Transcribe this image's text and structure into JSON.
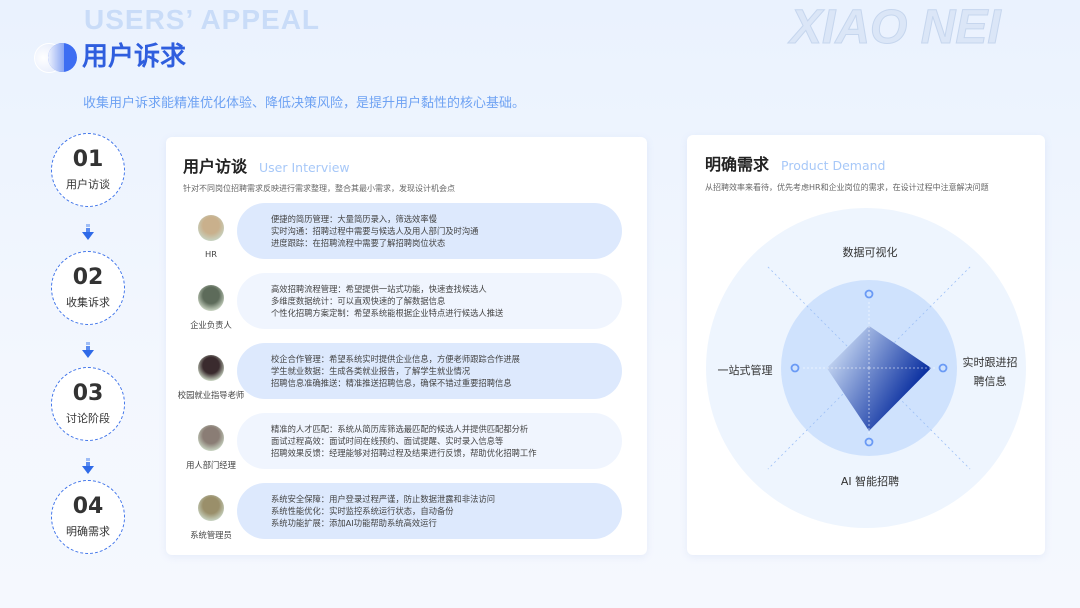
{
  "header": {
    "watermark": "USERS’  APPEAL",
    "watermark_right": "XIAO NEI",
    "title": "用户诉求",
    "subtitle": "收集用户诉求能精准优化体验、降低决策风险，是提升用户黏性的核心基础。"
  },
  "steps": [
    {
      "num": "01",
      "label": "用户访谈"
    },
    {
      "num": "02",
      "label": "收集诉求"
    },
    {
      "num": "03",
      "label": "讨论阶段"
    },
    {
      "num": "04",
      "label": "明确需求"
    }
  ],
  "interview": {
    "title": "用户访谈",
    "title_en": "User Interview",
    "desc": "针对不同岗位招聘需求反映进行需求整理，整合其最小需求，发现设计机会点",
    "rows": [
      {
        "role": "HR",
        "lines": [
          "便捷的简历管理：大量简历录入，筛选效率慢",
          "实时沟通：招聘过程中需要与候选人及用人部门及时沟通",
          "进度跟踪：在招聘流程中需要了解招聘岗位状态"
        ]
      },
      {
        "role": "企业负责人",
        "lines": [
          "高效招聘流程管理：希望提供一站式功能，快速查找候选人",
          "多维度数据统计：可以直观快速的了解数据信息",
          "个性化招聘方案定制：希望系统能根据企业特点进行候选人推送"
        ]
      },
      {
        "role": "校园就业指导老师",
        "lines": [
          "校企合作管理：希望系统实时提供企业信息，方便老师跟踪合作进展",
          "学生就业数据：生成各类就业报告，了解学生就业情况",
          "招聘信息准确推送：精准推送招聘信息，确保不错过重要招聘信息"
        ]
      },
      {
        "role": "用人部门经理",
        "lines": [
          "精准的人才匹配：系统从简历库筛选最匹配的候选人并提供匹配都分析",
          "面试过程高效：面试时间在线预约、面试提醒、实时录入信息等",
          "招聘效果反馈：经理能够对招聘过程及结果进行反馈，帮助优化招聘工作"
        ]
      },
      {
        "role": "系统管理员",
        "lines": [
          "系统安全保障：用户登录过程严谨，防止数据泄露和非法访问",
          "系统性能优化：实时监控系统运行状态，自动备份",
          "系统功能扩展：添加AI功能帮助系统高效运行"
        ]
      }
    ]
  },
  "demand": {
    "title": "明确需求",
    "title_en": "Product Demand",
    "desc": "从招聘效率来看待，优先考虑HR和企业岗位的需求，在设计过程中注意解决问题",
    "radar": {
      "axes": [
        {
          "label": "数据可视化",
          "value": 0.57
        },
        {
          "label_1": "实时跟进招",
          "label_2": "聘信息",
          "value": 0.84
        },
        {
          "label": "AI 智能招聘",
          "value": 0.85
        },
        {
          "label": "一站式管理",
          "value": 0.57
        }
      ],
      "colors": {
        "fill_start": "#d2e2f8",
        "fill_end": "#0a2fa0",
        "inner": "#cfe2fd",
        "outer": "#eef5fe"
      }
    }
  }
}
